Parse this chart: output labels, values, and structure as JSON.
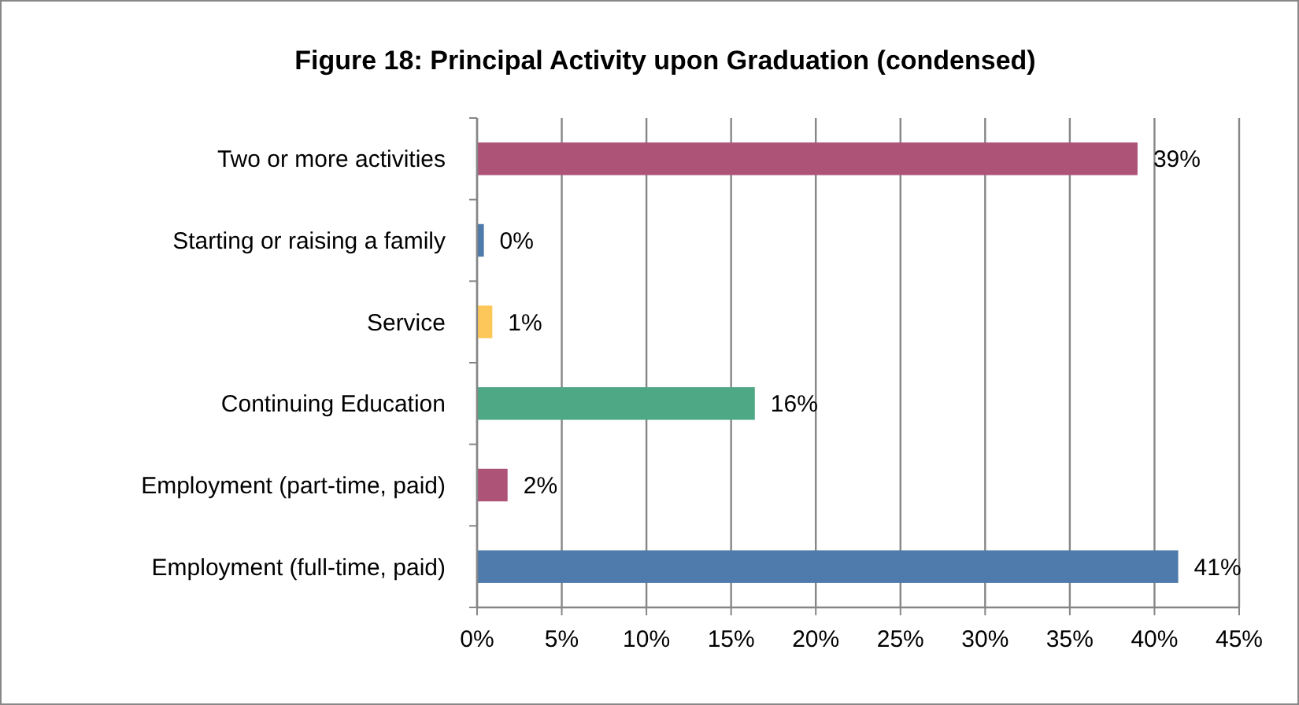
{
  "chart_data": {
    "type": "bar",
    "orientation": "horizontal",
    "title": "Figure 18: Principal Activity upon Graduation (condensed)",
    "categories": [
      "Two or more activities",
      "Starting or raising a family",
      "Service",
      "Continuing Education",
      "Employment (part-time, paid)",
      "Employment (full-time, paid)"
    ],
    "values": [
      39,
      0.4,
      0.9,
      16.4,
      1.8,
      41.4
    ],
    "value_labels": [
      "39%",
      "0%",
      "1%",
      "16%",
      "2%",
      "41%"
    ],
    "colors": [
      "#ad5377",
      "#4e7bac",
      "#fdc75a",
      "#4ea885",
      "#ad5377",
      "#4e7bac"
    ],
    "xlim": [
      0,
      45
    ],
    "xticks": [
      {
        "value": 0,
        "label": "0%"
      },
      {
        "value": 5,
        "label": "5%"
      },
      {
        "value": 10,
        "label": "10%"
      },
      {
        "value": 15,
        "label": "15%"
      },
      {
        "value": 20,
        "label": "20%"
      },
      {
        "value": 25,
        "label": "25%"
      },
      {
        "value": 30,
        "label": "30%"
      },
      {
        "value": 35,
        "label": "35%"
      },
      {
        "value": 40,
        "label": "40%"
      },
      {
        "value": 45,
        "label": "45%"
      }
    ],
    "grid": "x"
  }
}
